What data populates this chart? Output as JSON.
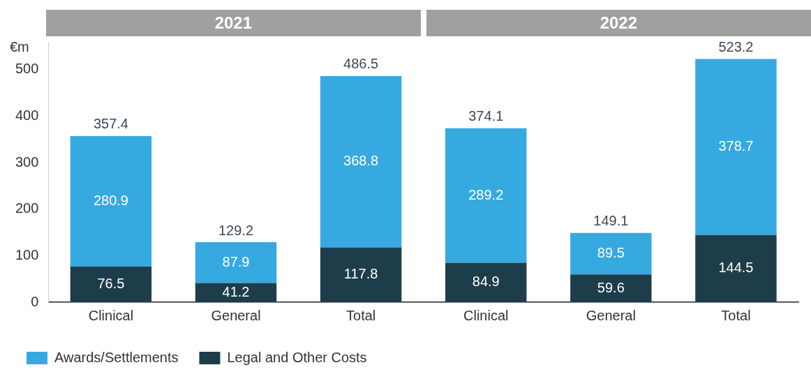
{
  "chart_data": {
    "type": "bar",
    "stacked": true,
    "ylabel": "€m",
    "categories": [
      "Clinical",
      "General",
      "Total",
      "Clinical",
      "General",
      "Total"
    ],
    "series": [
      {
        "name": "Legal and Other Costs",
        "color": "#1e3d4b",
        "values": [
          76.5,
          41.2,
          117.8,
          84.9,
          59.6,
          144.5
        ]
      },
      {
        "name": "Awards/Settlements",
        "color": "#36a9e1",
        "values": [
          280.9,
          87.9,
          368.8,
          289.2,
          89.5,
          378.7
        ]
      }
    ],
    "totals": [
      "357.4",
      "129.2",
      "486.5",
      "374.1",
      "149.1",
      "523.2"
    ],
    "data_labels": true,
    "ylim": [
      0,
      560
    ],
    "yticks": [
      0,
      100,
      200,
      300,
      400,
      500
    ],
    "grid": false,
    "legend": "bottom left",
    "annotations": [
      "2021",
      "2022"
    ]
  }
}
